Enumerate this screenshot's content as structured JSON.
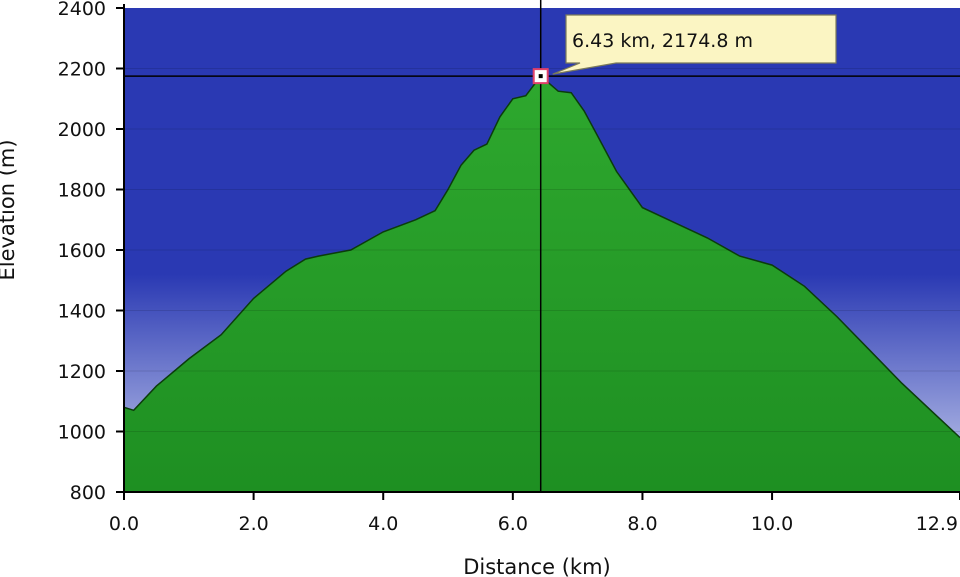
{
  "chart_data": {
    "type": "area",
    "title": "",
    "xlabel": "Distance  (km)",
    "ylabel": "Elevation (m)",
    "xlim": [
      0,
      12.9
    ],
    "ylim": [
      800,
      2400
    ],
    "x_ticks": [
      "0.0",
      "2.0",
      "4.0",
      "6.0",
      "8.0",
      "10.0",
      "12.9"
    ],
    "x_tick_values": [
      0,
      2,
      4,
      6,
      8,
      10,
      12.9
    ],
    "y_ticks": [
      "800",
      "1000",
      "1200",
      "1400",
      "1600",
      "1800",
      "2000",
      "2200",
      "2400"
    ],
    "y_tick_values": [
      800,
      1000,
      1200,
      1400,
      1600,
      1800,
      2000,
      2200,
      2400
    ],
    "grid": true,
    "colors": {
      "sky_top": "#2a39b3",
      "sky_bottom": "#c9d0ee",
      "fill_top": "#2ea82e",
      "fill_bottom": "#1e8f22",
      "outline": "#0b3d0b",
      "tooltip_bg": "#fbf5c3"
    },
    "series": [
      {
        "x": [
          0.0,
          0.15,
          0.5,
          1.0,
          1.5,
          2.0,
          2.5,
          2.8,
          3.0,
          3.5,
          4.0,
          4.5,
          4.8,
          5.0,
          5.2,
          5.4,
          5.6,
          5.8,
          6.0,
          6.2,
          6.43,
          6.7,
          6.9,
          7.1,
          7.3,
          7.6,
          8.0,
          8.5,
          9.0,
          9.5,
          10.0,
          10.5,
          11.0,
          11.5,
          12.0,
          12.5,
          12.9
        ],
        "y": [
          1080,
          1070,
          1150,
          1240,
          1320,
          1440,
          1530,
          1570,
          1580,
          1600,
          1660,
          1700,
          1730,
          1800,
          1880,
          1930,
          1950,
          2040,
          2100,
          2110,
          2175,
          2125,
          2120,
          2060,
          1980,
          1860,
          1740,
          1690,
          1640,
          1580,
          1550,
          1480,
          1380,
          1270,
          1160,
          1060,
          980
        ]
      }
    ],
    "cursor": {
      "x": 6.43,
      "y": 2174.8,
      "label": "6.43 km, 2174.8 m"
    }
  }
}
